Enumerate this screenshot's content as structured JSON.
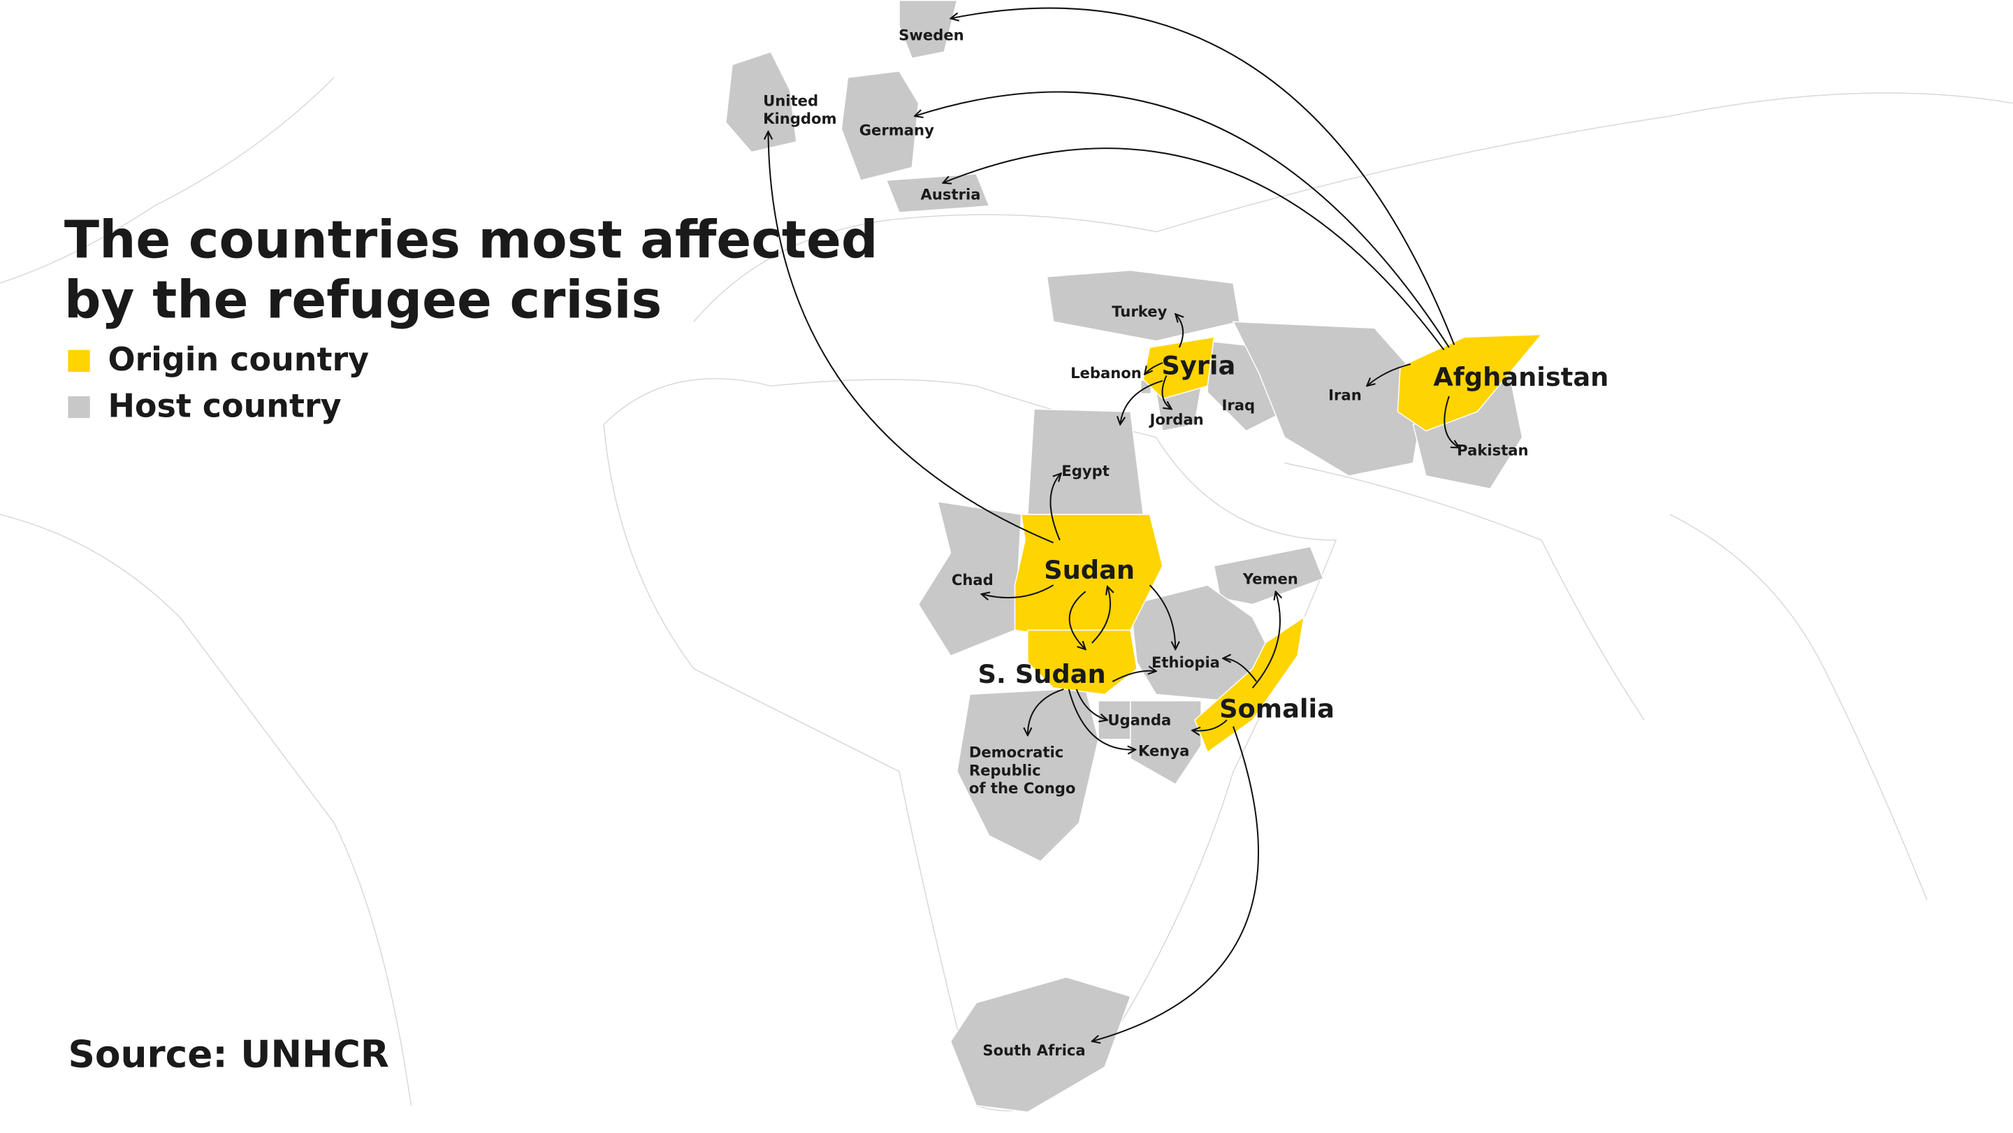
{
  "title_lines": [
    "The countries most affected",
    "by the refugee crisis"
  ],
  "legend": [
    {
      "label": "Origin country",
      "color": "#ffd400"
    },
    {
      "label": "Host country",
      "color": "#c8c8c8"
    }
  ],
  "source": "Source: UNHCR",
  "origins": [
    {
      "label_lines": [
        "Syria"
      ]
    },
    {
      "label_lines": [
        "Afghanistan"
      ]
    },
    {
      "label_lines": [
        "Sudan"
      ]
    },
    {
      "label_lines": [
        "S. Sudan"
      ]
    },
    {
      "label_lines": [
        "Somalia"
      ]
    }
  ],
  "hosts": [
    {
      "label_lines": [
        "Sweden"
      ]
    },
    {
      "label_lines": [
        "United",
        "Kingdom"
      ]
    },
    {
      "label_lines": [
        "Germany"
      ]
    },
    {
      "label_lines": [
        "Austria"
      ]
    },
    {
      "label_lines": [
        "Turkey"
      ]
    },
    {
      "label_lines": [
        "Lebanon"
      ]
    },
    {
      "label_lines": [
        "Jordan"
      ]
    },
    {
      "label_lines": [
        "Iraq"
      ]
    },
    {
      "label_lines": [
        "Iran"
      ]
    },
    {
      "label_lines": [
        "Pakistan"
      ]
    },
    {
      "label_lines": [
        "Egypt"
      ]
    },
    {
      "label_lines": [
        "Chad"
      ]
    },
    {
      "label_lines": [
        "Yemen"
      ]
    },
    {
      "label_lines": [
        "Ethiopia"
      ]
    },
    {
      "label_lines": [
        "Uganda"
      ]
    },
    {
      "label_lines": [
        "Kenya"
      ]
    },
    {
      "label_lines": [
        "Democratic",
        "Republic",
        "of the Congo"
      ]
    },
    {
      "label_lines": [
        "South Africa"
      ]
    }
  ]
}
